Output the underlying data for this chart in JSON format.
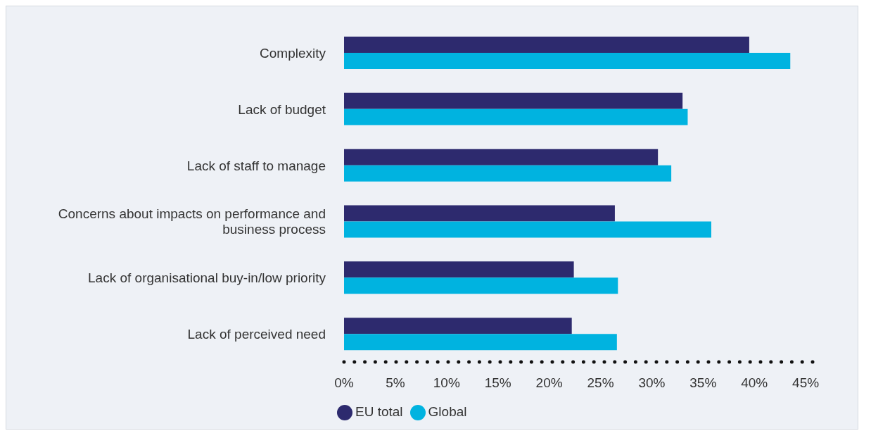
{
  "chart_data": {
    "type": "bar",
    "orientation": "horizontal",
    "categories": [
      "Complexity",
      "Lack of budget",
      "Lack of staff to manage",
      "Concerns about impacts on performance and business process",
      "Lack of organisational buy-in/low priority",
      "Lack of perceived need"
    ],
    "series": [
      {
        "name": "EU total",
        "color": "#2d2a6e",
        "values": [
          39.5,
          33.0,
          30.6,
          26.4,
          22.4,
          22.2
        ]
      },
      {
        "name": "Global",
        "color": "#00b3e0",
        "values": [
          43.5,
          33.5,
          31.9,
          35.8,
          26.7,
          26.6
        ]
      }
    ],
    "xlim": [
      0,
      46.5
    ],
    "xticks": [
      {
        "value": 0,
        "label": "0%"
      },
      {
        "value": 5,
        "label": "5%"
      },
      {
        "value": 10,
        "label": "10%"
      },
      {
        "value": 15,
        "label": "15%"
      },
      {
        "value": 20,
        "label": "20%"
      },
      {
        "value": 25,
        "label": "25%"
      },
      {
        "value": 30,
        "label": "30%"
      },
      {
        "value": 35,
        "label": "35%"
      },
      {
        "value": 40,
        "label": "40%"
      },
      {
        "value": 45,
        "label": "45%"
      }
    ],
    "grid": false,
    "legend": "bottom"
  }
}
